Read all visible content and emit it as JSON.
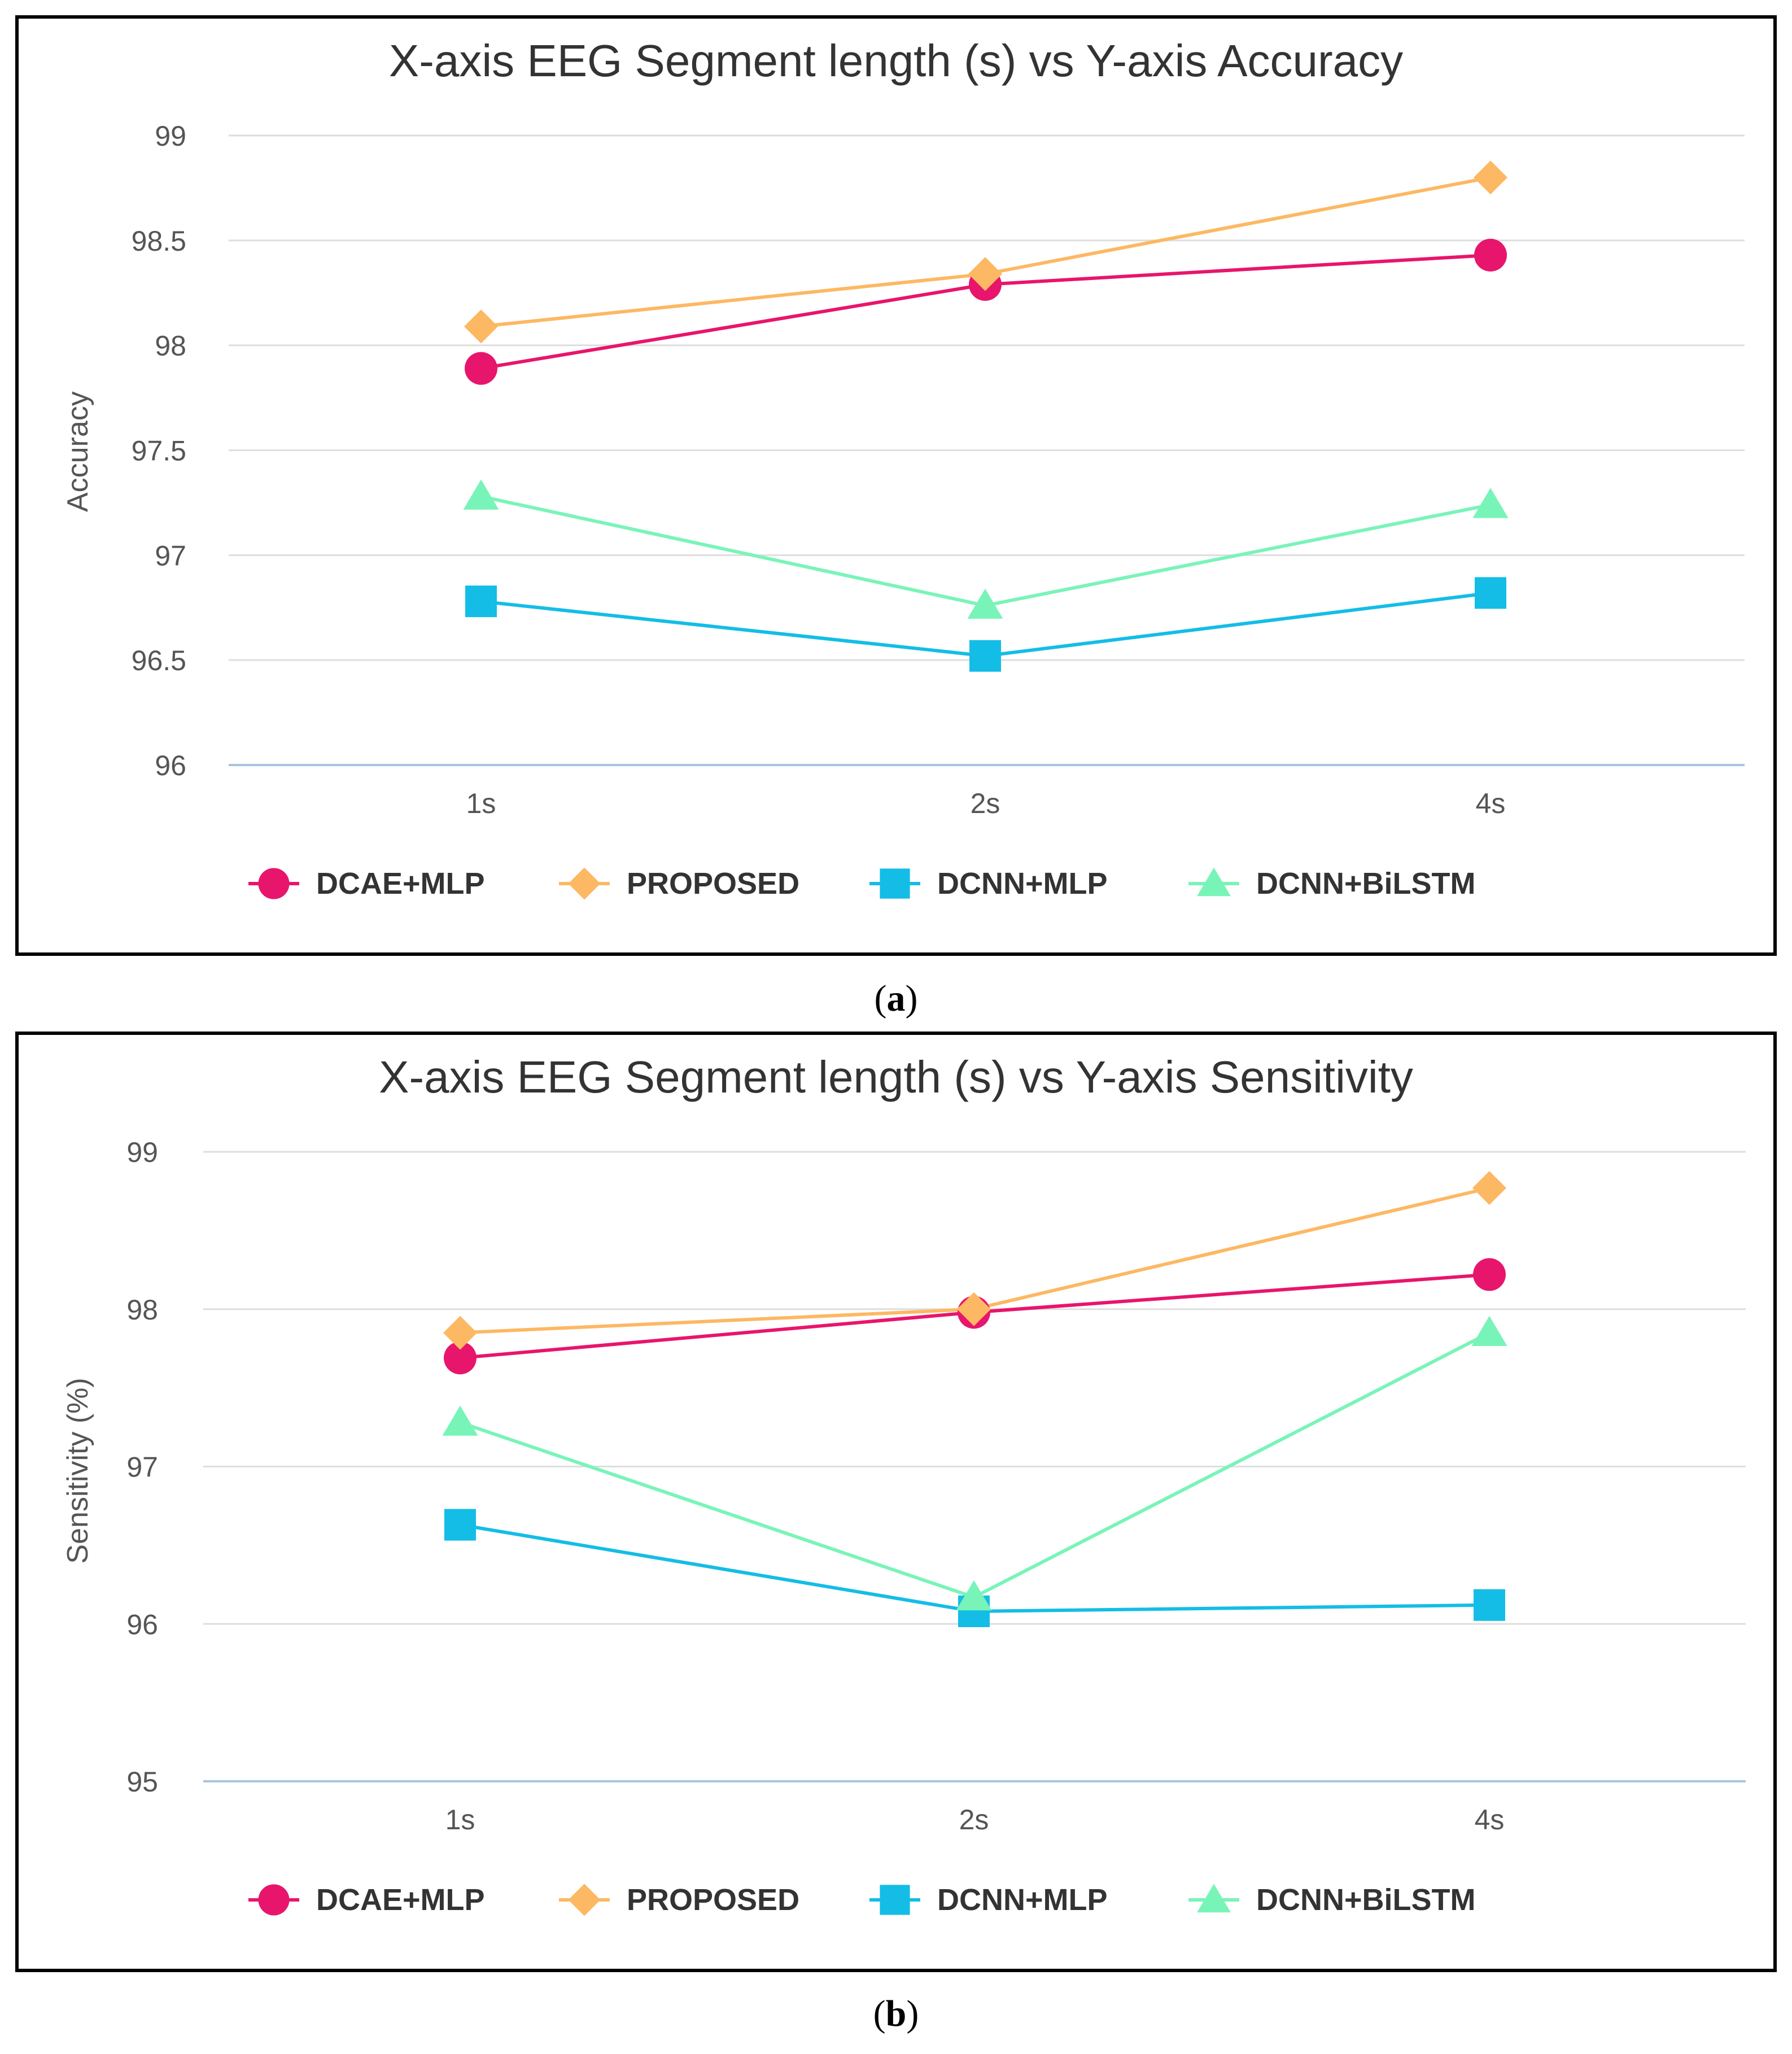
{
  "figure": {
    "panels": [
      {
        "label_open": "(",
        "label_letter": "a",
        "label_close": ")"
      },
      {
        "label_open": "(",
        "label_letter": "b",
        "label_close": ")"
      }
    ]
  },
  "colors": {
    "dcae_mlp": "#E8156C",
    "proposed": "#FDB863",
    "dcnn_mlp": "#14BDE6",
    "dcnn_bilstm": "#79F4B8",
    "grid": "#DEDEDE",
    "baseline": "#A9C3E0",
    "text": "#333333",
    "tick": "#555555"
  },
  "chart_data": [
    {
      "type": "line",
      "title": "X-axis EEG Segment length (s) vs Y-axis Accuracy",
      "xlabel": "",
      "ylabel": "Accuracy",
      "categories": [
        "1s",
        "2s",
        "4s"
      ],
      "ylim": [
        96,
        99
      ],
      "yticks": [
        96,
        96.5,
        97,
        97.5,
        98,
        98.5,
        99
      ],
      "ytick_labels": [
        "96",
        "96.5",
        "97",
        "97.5",
        "98",
        "98.5",
        "99"
      ],
      "grid": true,
      "legend": "bottom",
      "series": [
        {
          "name": "DCAE+MLP",
          "marker": "circle",
          "values": [
            97.89,
            98.29,
            98.43
          ]
        },
        {
          "name": "PROPOSED",
          "marker": "diamond",
          "values": [
            98.09,
            98.34,
            98.8
          ]
        },
        {
          "name": "DCNN+MLP",
          "marker": "square",
          "values": [
            96.78,
            96.52,
            96.82
          ]
        },
        {
          "name": "DCNN+BiLSTM",
          "marker": "triangle",
          "values": [
            97.28,
            96.76,
            97.24
          ]
        }
      ]
    },
    {
      "type": "line",
      "title": "X-axis EEG Segment length (s) vs Y-axis Sensitivity",
      "xlabel": "",
      "ylabel": "Sensitivity (%)",
      "categories": [
        "1s",
        "2s",
        "4s"
      ],
      "ylim": [
        95,
        99
      ],
      "yticks": [
        95,
        96,
        97,
        98,
        99
      ],
      "ytick_labels": [
        "95",
        "96",
        "97",
        "98",
        "99"
      ],
      "grid": true,
      "legend": "bottom",
      "series": [
        {
          "name": "DCAE+MLP",
          "marker": "circle",
          "values": [
            97.69,
            97.98,
            98.22
          ]
        },
        {
          "name": "PROPOSED",
          "marker": "diamond",
          "values": [
            97.85,
            98.0,
            98.77
          ]
        },
        {
          "name": "DCNN+MLP",
          "marker": "square",
          "values": [
            96.63,
            96.08,
            96.12
          ]
        },
        {
          "name": "DCNN+BiLSTM",
          "marker": "triangle",
          "values": [
            97.28,
            96.17,
            97.85
          ]
        }
      ]
    }
  ]
}
